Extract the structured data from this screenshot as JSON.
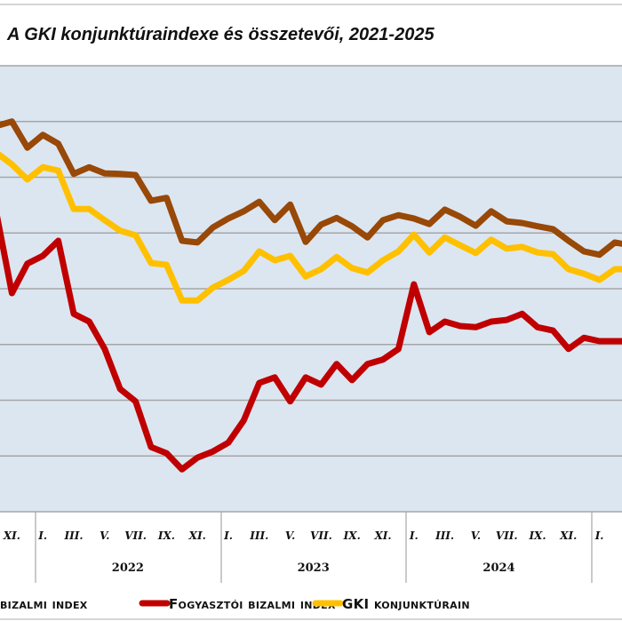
{
  "chart_data": {
    "type": "line",
    "title": "A GKI konjunktúraindexe és összetevői, 2021-2025",
    "xlabel": "",
    "ylabel": "",
    "grid": true,
    "legend_position": "bottom",
    "x": [
      "2021-10",
      "2021-11",
      "2021-12",
      "2022-01",
      "2022-02",
      "2022-03",
      "2022-04",
      "2022-05",
      "2022-06",
      "2022-07",
      "2022-08",
      "2022-09",
      "2022-10",
      "2022-11",
      "2022-12",
      "2023-01",
      "2023-02",
      "2023-03",
      "2023-04",
      "2023-05",
      "2023-06",
      "2023-07",
      "2023-08",
      "2023-09",
      "2023-10",
      "2023-11",
      "2023-12",
      "2024-01",
      "2024-02",
      "2024-03",
      "2024-04",
      "2024-05",
      "2024-06",
      "2024-07",
      "2024-08",
      "2024-09",
      "2024-10",
      "2024-11",
      "2024-12",
      "2025-01",
      "2025-02",
      "2025-03"
    ],
    "ylim": [
      0,
      80
    ],
    "series": [
      {
        "name": "bizalmi index",
        "color": "#984807",
        "values": [
          69.2,
          70.0,
          65.3,
          67.6,
          66.0,
          60.6,
          61.8,
          60.7,
          60.6,
          60.4,
          55.8,
          56.3,
          48.6,
          48.3,
          51.0,
          52.6,
          53.9,
          55.6,
          52.3,
          55.1,
          48.4,
          51.5,
          52.7,
          51.2,
          49.2,
          52.3,
          53.2,
          52.6,
          51.6,
          54.2,
          52.9,
          51.3,
          53.9,
          52.1,
          51.8,
          51.2,
          50.7,
          48.6,
          46.7,
          46.1,
          48.3,
          47.8
        ]
      },
      {
        "name": "Fogyasztói bizalmi index",
        "color": "#c00000",
        "values": [
          53.5,
          39.2,
          44.5,
          45.9,
          48.6,
          35.5,
          34.1,
          29.2,
          22.0,
          19.8,
          11.6,
          10.5,
          7.6,
          9.7,
          10.8,
          12.4,
          16.4,
          23.1,
          24.1,
          19.8,
          24.1,
          22.8,
          26.5,
          23.6,
          26.5,
          27.3,
          29.2,
          40.8,
          32.2,
          34.1,
          33.3,
          33.1,
          34.1,
          34.4,
          35.5,
          33.1,
          32.5,
          29.2,
          31.2,
          30.6,
          30.6,
          30.6
        ]
      },
      {
        "name": "GKI konjunktúrain",
        "color": "#ffc000",
        "values": [
          64.4,
          62.3,
          59.6,
          61.8,
          61.2,
          54.3,
          54.3,
          52.3,
          50.4,
          49.6,
          44.6,
          44.3,
          37.9,
          37.9,
          40.2,
          41.6,
          43.2,
          46.7,
          45.1,
          45.9,
          42.2,
          43.5,
          45.7,
          43.7,
          42.9,
          45.1,
          46.7,
          49.7,
          46.5,
          49.2,
          47.8,
          46.4,
          48.8,
          47.2,
          47.5,
          46.5,
          46.2,
          43.5,
          42.7,
          41.6,
          43.5,
          43.5
        ]
      }
    ],
    "tick_labels": [
      {
        "month": 1,
        "label": "XI."
      },
      {
        "month": 3,
        "label": "I."
      },
      {
        "month": 5,
        "label": "III."
      },
      {
        "month": 7,
        "label": "V."
      },
      {
        "month": 9,
        "label": "VII."
      },
      {
        "month": 11,
        "label": "IX."
      },
      {
        "month": 13,
        "label": "XI."
      },
      {
        "month": 15,
        "label": "I."
      },
      {
        "month": 17,
        "label": "III."
      },
      {
        "month": 19,
        "label": "V."
      },
      {
        "month": 21,
        "label": "VII."
      },
      {
        "month": 23,
        "label": "IX."
      },
      {
        "month": 25,
        "label": "XI."
      },
      {
        "month": 27,
        "label": "I."
      },
      {
        "month": 29,
        "label": "III."
      },
      {
        "month": 31,
        "label": "V."
      },
      {
        "month": 33,
        "label": "VII."
      },
      {
        "month": 35,
        "label": "IX."
      },
      {
        "month": 37,
        "label": "XI."
      },
      {
        "month": 39,
        "label": "I."
      }
    ],
    "years": [
      {
        "label": "2022",
        "start": 3
      },
      {
        "label": "2023",
        "start": 15
      },
      {
        "label": "2024",
        "start": 27
      }
    ]
  }
}
